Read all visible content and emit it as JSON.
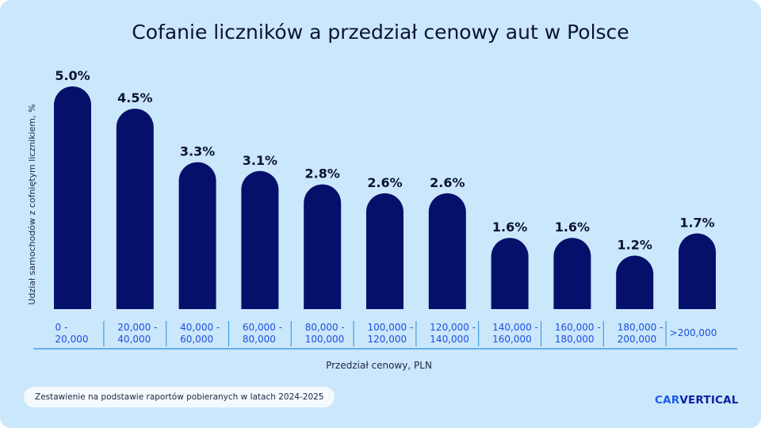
{
  "title": "Cofanie liczników a przedział cenowy aut w Polsce",
  "footnote": "Zestawienie na podstawie raportów pobieranych w latach 2024-2025",
  "brand": {
    "part1": "CAR",
    "part2": "VERTICAL"
  },
  "colors": {
    "bar": "#05106b",
    "background": "#cbe7fb",
    "axis_line": "#2a8fe0",
    "category_text": "#1c4fe0"
  },
  "chart_data": {
    "type": "bar",
    "title": "Cofanie liczników a przedział cenowy aut w Polsce",
    "xlabel": "Przedział cenowy, PLN",
    "ylabel": "Udział samochodów z cofniętym licznikiem, %",
    "categories": [
      [
        "0 -",
        "20,000"
      ],
      [
        "20,000 -",
        "40,000"
      ],
      [
        "40,000 -",
        "60,000"
      ],
      [
        "60,000 -",
        "80,000"
      ],
      [
        "80,000 -",
        "100,000"
      ],
      [
        "100,000 -",
        "120,000"
      ],
      [
        "120,000 -",
        "140,000"
      ],
      [
        "140,000 -",
        "160,000"
      ],
      [
        "160,000 -",
        "180,000"
      ],
      [
        "180,000 -",
        "200,000"
      ],
      [
        ">200,000"
      ]
    ],
    "values": [
      5.0,
      4.5,
      3.3,
      3.1,
      2.8,
      2.6,
      2.6,
      1.6,
      1.6,
      1.2,
      1.7
    ],
    "labels": [
      "5.0%",
      "4.5%",
      "3.3%",
      "3.1%",
      "2.8%",
      "2.6%",
      "2.6%",
      "1.6%",
      "1.6%",
      "1.2%",
      "1.7%"
    ],
    "ylim": [
      0,
      5.0
    ],
    "grid": false,
    "legend": "none"
  }
}
